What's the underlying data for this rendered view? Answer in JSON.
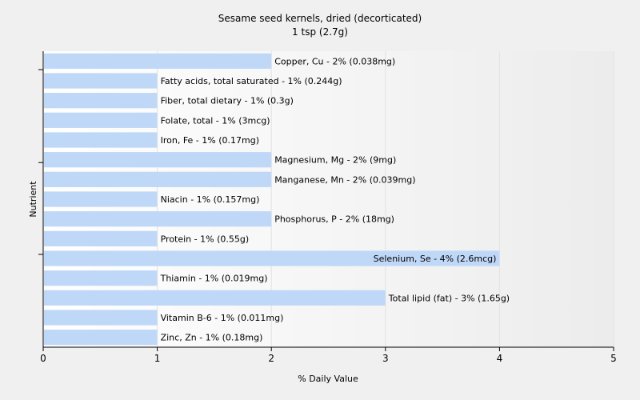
{
  "chart_data": {
    "type": "bar",
    "orientation": "horizontal",
    "title": "Sesame seed kernels, dried (decorticated)",
    "subtitle": "1 tsp (2.7g)",
    "xlabel": "% Daily Value",
    "ylabel": "Nutrient",
    "xlim": [
      0,
      5
    ],
    "xticks": [
      "0",
      "1",
      "2",
      "3",
      "4",
      "5"
    ],
    "grid": true,
    "bar_color": "#c0d8f8",
    "categories": [
      "Copper, Cu",
      "Fatty acids, total saturated",
      "Fiber, total dietary",
      "Folate, total",
      "Iron, Fe",
      "Magnesium, Mg",
      "Manganese, Mn",
      "Niacin",
      "Phosphorus, P",
      "Protein",
      "Selenium, Se",
      "Thiamin",
      "Total lipid (fat)",
      "Vitamin B-6",
      "Zinc, Zn"
    ],
    "values": [
      2,
      1,
      1,
      1,
      1,
      2,
      2,
      1,
      2,
      1,
      4,
      1,
      3,
      1,
      1
    ],
    "labels": [
      "Copper, Cu - 2% (0.038mg)",
      "Fatty acids, total saturated - 1% (0.244g)",
      "Fiber, total dietary - 1% (0.3g)",
      "Folate, total - 1% (3mcg)",
      "Iron, Fe - 1% (0.17mg)",
      "Magnesium, Mg - 2% (9mg)",
      "Manganese, Mn - 2% (0.039mg)",
      "Niacin - 1% (0.157mg)",
      "Phosphorus, P - 2% (18mg)",
      "Protein - 1% (0.55g)",
      "Selenium, Se - 4% (2.6mcg)",
      "Thiamin - 1% (0.019mg)",
      "Total lipid (fat) - 3% (1.65g)",
      "Vitamin B-6 - 1% (0.011mg)",
      "Zinc, Zn - 1% (0.18mg)"
    ]
  }
}
